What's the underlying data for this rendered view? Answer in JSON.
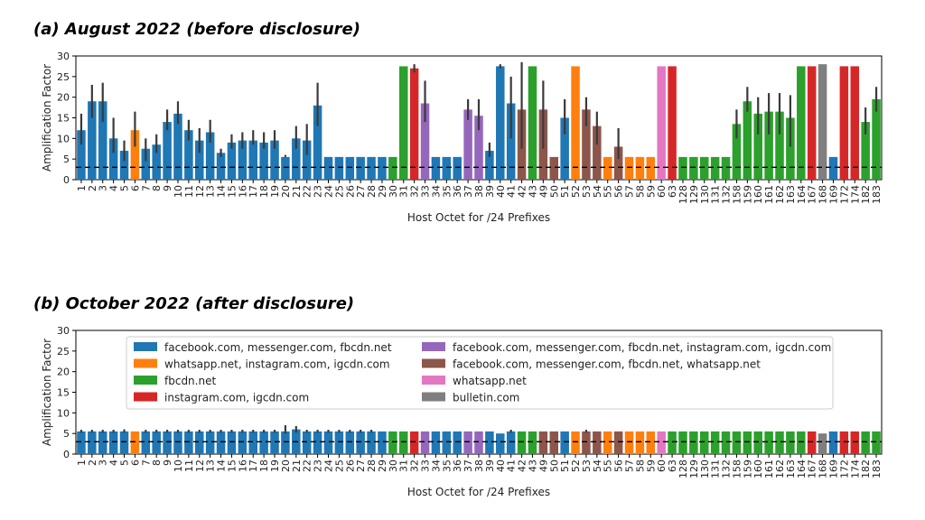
{
  "chart_data": [
    {
      "type": "bar",
      "title": "(a) August 2022 (before disclosure)",
      "xlabel": "Host Octet for /24 Prefixes",
      "ylabel": "Amplification Factor",
      "ylim": [
        0,
        30
      ],
      "yticks": [
        0,
        5,
        10,
        15,
        20,
        25,
        30
      ],
      "reference_line": 3,
      "error_bars": true,
      "categories": [
        "1",
        "2",
        "3",
        "4",
        "5",
        "6",
        "7",
        "8",
        "9",
        "10",
        "11",
        "12",
        "13",
        "14",
        "15",
        "16",
        "17",
        "18",
        "19",
        "20",
        "21",
        "22",
        "23",
        "24",
        "25",
        "26",
        "27",
        "28",
        "29",
        "30",
        "31",
        "32",
        "33",
        "34",
        "35",
        "36",
        "37",
        "38",
        "39",
        "40",
        "41",
        "42",
        "43",
        "49",
        "50",
        "51",
        "52",
        "53",
        "54",
        "55",
        "56",
        "57",
        "58",
        "59",
        "60",
        "63",
        "128",
        "129",
        "130",
        "131",
        "132",
        "158",
        "159",
        "160",
        "161",
        "162",
        "163",
        "164",
        "167",
        "168",
        "169",
        "172",
        "174",
        "182",
        "183"
      ],
      "values": [
        12,
        19,
        19,
        10,
        7,
        12,
        7.5,
        8.5,
        14,
        16,
        12,
        9.5,
        11.5,
        6.5,
        9,
        9.5,
        9.5,
        9,
        9.5,
        5.5,
        10,
        9.5,
        18,
        5.5,
        5.5,
        5.5,
        5.5,
        5.5,
        5.5,
        5.5,
        27.5,
        27,
        18.5,
        5.5,
        5.5,
        5.5,
        17,
        15.5,
        7,
        27.5,
        18.5,
        17,
        27.5,
        17,
        5.5,
        15,
        27.5,
        17,
        13,
        5.5,
        8,
        5.5,
        5.5,
        5.5,
        27.5,
        27.5,
        5.5,
        5.5,
        5.5,
        5.5,
        5.5,
        13.5,
        19,
        16,
        16.5,
        16.5,
        15,
        27.5,
        27.5,
        28,
        5.5,
        27.5,
        27.5,
        14,
        19.5
      ],
      "err_low": [
        8.5,
        15,
        14,
        6.5,
        4.5,
        8,
        4.5,
        6.5,
        12,
        13.5,
        9.5,
        6.5,
        9,
        5.5,
        7.5,
        7.5,
        8.5,
        7.5,
        7.5,
        5.5,
        7.5,
        6,
        13,
        5.5,
        5.5,
        5.5,
        5.5,
        5.5,
        5.5,
        5.5,
        27.5,
        26,
        14,
        5.5,
        5.5,
        5.5,
        14.5,
        12,
        5.5,
        27,
        10,
        7.5,
        27.5,
        7.5,
        5.5,
        11,
        27.5,
        13,
        8.5,
        5.5,
        5,
        5.5,
        5.5,
        5.5,
        27.5,
        27.5,
        5.5,
        5.5,
        5.5,
        5.5,
        5.5,
        10,
        16.5,
        11,
        11,
        11,
        8,
        27.5,
        27.5,
        28,
        5.5,
        27.5,
        27.5,
        11,
        16.5
      ],
      "err_high": [
        16,
        23,
        23.5,
        15,
        9.5,
        16.5,
        10,
        11,
        17,
        19,
        14.5,
        12.5,
        14.5,
        7.5,
        11,
        11.5,
        12,
        11.5,
        12,
        6,
        13,
        13.5,
        23.5,
        5.5,
        5.5,
        5.5,
        5.5,
        5.5,
        5.5,
        5.5,
        27.5,
        28,
        24,
        5.5,
        5.5,
        5.5,
        19.5,
        19.5,
        9,
        28,
        25,
        28.5,
        27.5,
        24,
        5.5,
        19.5,
        27.5,
        20,
        16.5,
        5.5,
        12.5,
        5.5,
        5.5,
        5.5,
        27.5,
        27.5,
        5.5,
        5.5,
        5.5,
        5.5,
        5.5,
        17,
        22.5,
        20,
        21,
        21,
        20.5,
        27.5,
        27.5,
        28,
        5.5,
        27.5,
        27.5,
        17.5,
        22.5
      ],
      "group_index": [
        0,
        0,
        0,
        0,
        0,
        1,
        0,
        0,
        0,
        0,
        0,
        0,
        0,
        0,
        0,
        0,
        0,
        0,
        0,
        0,
        0,
        0,
        0,
        0,
        0,
        0,
        0,
        0,
        0,
        2,
        2,
        3,
        4,
        0,
        0,
        0,
        4,
        4,
        0,
        0,
        0,
        5,
        2,
        5,
        5,
        0,
        1,
        5,
        5,
        1,
        5,
        1,
        1,
        1,
        6,
        3,
        2,
        2,
        2,
        2,
        2,
        2,
        2,
        2,
        2,
        2,
        2,
        2,
        3,
        7,
        0,
        3,
        3,
        2,
        2
      ]
    },
    {
      "type": "bar",
      "title": "(b) October 2022 (after disclosure)",
      "xlabel": "Host Octet for /24 Prefixes",
      "ylabel": "Amplification Factor",
      "ylim": [
        0,
        30
      ],
      "yticks": [
        0,
        5,
        10,
        15,
        20,
        25,
        30
      ],
      "reference_line": 3,
      "error_bars": true,
      "categories": [
        "1",
        "2",
        "3",
        "4",
        "5",
        "6",
        "7",
        "8",
        "9",
        "10",
        "11",
        "12",
        "13",
        "14",
        "15",
        "16",
        "17",
        "18",
        "19",
        "20",
        "21",
        "22",
        "23",
        "24",
        "25",
        "26",
        "27",
        "28",
        "29",
        "30",
        "31",
        "32",
        "33",
        "34",
        "35",
        "36",
        "37",
        "38",
        "39",
        "40",
        "41",
        "42",
        "43",
        "49",
        "50",
        "51",
        "52",
        "53",
        "54",
        "55",
        "56",
        "57",
        "58",
        "59",
        "60",
        "63",
        "128",
        "129",
        "130",
        "131",
        "132",
        "158",
        "159",
        "160",
        "161",
        "162",
        "163",
        "164",
        "167",
        "168",
        "169",
        "172",
        "174",
        "182",
        "183"
      ],
      "values": [
        5.5,
        5.5,
        5.5,
        5.5,
        5.5,
        5.5,
        5.5,
        5.5,
        5.5,
        5.5,
        5.5,
        5.5,
        5.5,
        5.5,
        5.5,
        5.5,
        5.5,
        5.5,
        5.5,
        5.5,
        6,
        5.5,
        5.5,
        5.5,
        5.5,
        5.5,
        5.5,
        5.5,
        5.5,
        5.5,
        5.5,
        5.5,
        5.5,
        5.5,
        5.5,
        5.5,
        5.5,
        5.5,
        5.5,
        5,
        5.5,
        5.5,
        5.5,
        5.5,
        5.5,
        5.5,
        5.5,
        5.5,
        5.5,
        5.5,
        5.5,
        5.5,
        5.5,
        5.5,
        5.5,
        5.5,
        5.5,
        5.5,
        5.5,
        5.5,
        5.5,
        5.5,
        5.5,
        5.5,
        5.5,
        5.5,
        5.5,
        5.5,
        5.5,
        5,
        5.5,
        5.5,
        5.5,
        5.5,
        5.5
      ],
      "err_low": [
        5.2,
        5.2,
        5.2,
        5.2,
        5.2,
        5.5,
        5.2,
        5.2,
        5.2,
        5.2,
        5.2,
        5.2,
        5.2,
        5.2,
        5.2,
        5.2,
        5.2,
        5.2,
        5.2,
        5,
        5.2,
        5.2,
        5.2,
        5.2,
        5.2,
        5.2,
        5.2,
        5.2,
        5.5,
        5.5,
        5.5,
        5.5,
        5.5,
        5.5,
        5.5,
        5.5,
        5.5,
        5.5,
        5.5,
        5,
        5.2,
        5.5,
        5.5,
        5.5,
        5.5,
        5.5,
        5.5,
        5.2,
        5.5,
        5.5,
        5.5,
        5.5,
        5.5,
        5.5,
        5.5,
        5.5,
        5.5,
        5.5,
        5.5,
        5.5,
        5.5,
        5.5,
        5.5,
        5.5,
        5.5,
        5.5,
        5.5,
        5.5,
        5.5,
        5,
        5.5,
        5.5,
        5.5,
        5.5,
        5.5
      ],
      "err_high": [
        5.9,
        5.9,
        5.9,
        5.9,
        6,
        5.5,
        5.9,
        5.9,
        5.9,
        5.9,
        5.9,
        5.9,
        5.9,
        5.9,
        5.9,
        5.9,
        5.9,
        5.9,
        5.9,
        7,
        6.8,
        5.9,
        5.9,
        5.9,
        5.9,
        5.9,
        5.9,
        5.9,
        5.5,
        5.5,
        5.5,
        5.5,
        5.5,
        5.5,
        5.5,
        5.5,
        5.5,
        5.5,
        5.5,
        5,
        5.9,
        5.5,
        5.5,
        5.5,
        5.5,
        5.5,
        5.5,
        5.9,
        5.5,
        5.5,
        5.5,
        5.5,
        5.5,
        5.5,
        5.5,
        5.5,
        5.5,
        5.5,
        5.5,
        5.5,
        5.5,
        5.5,
        5.5,
        5.5,
        5.5,
        5.5,
        5.5,
        5.5,
        5.5,
        5,
        5.5,
        5.5,
        5.5,
        5.5,
        5.5
      ],
      "group_index": [
        0,
        0,
        0,
        0,
        0,
        1,
        0,
        0,
        0,
        0,
        0,
        0,
        0,
        0,
        0,
        0,
        0,
        0,
        0,
        0,
        0,
        0,
        0,
        0,
        0,
        0,
        0,
        0,
        0,
        2,
        2,
        3,
        4,
        0,
        0,
        0,
        4,
        4,
        0,
        0,
        0,
        2,
        2,
        5,
        5,
        0,
        1,
        5,
        5,
        1,
        5,
        1,
        1,
        1,
        6,
        2,
        2,
        2,
        2,
        2,
        2,
        2,
        2,
        2,
        2,
        2,
        2,
        2,
        3,
        7,
        0,
        3,
        3,
        2,
        2
      ]
    }
  ],
  "legend": [
    {
      "label": "facebook.com, messenger.com, fbcdn.net",
      "color": "#1f77b4"
    },
    {
      "label": "whatsapp.net, instagram.com, igcdn.com",
      "color": "#ff7f0e"
    },
    {
      "label": "fbcdn.net",
      "color": "#2ca02c"
    },
    {
      "label": "instagram.com, igcdn.com",
      "color": "#d62728"
    },
    {
      "label": "facebook.com, messenger.com, fbcdn.net, instagram.com, igcdn.com",
      "color": "#9467bd"
    },
    {
      "label": "facebook.com, messenger.com, fbcdn.net, whatsapp.net",
      "color": "#8c564b"
    },
    {
      "label": "whatsapp.net",
      "color": "#e377c2"
    },
    {
      "label": "bulletin.com",
      "color": "#7f7f7f"
    }
  ],
  "legend_location": "top-center (panel b)"
}
